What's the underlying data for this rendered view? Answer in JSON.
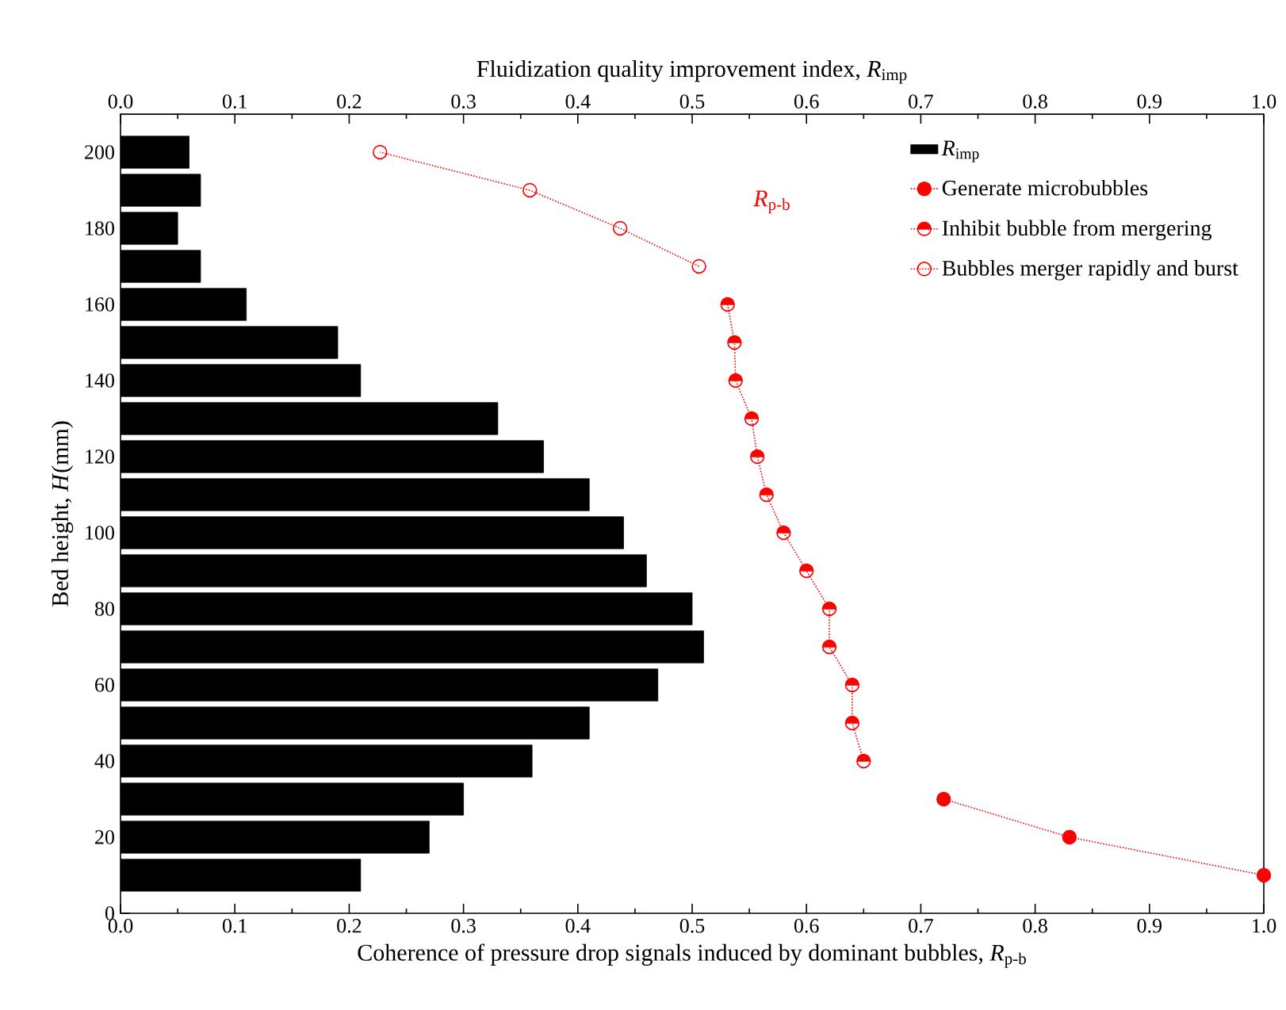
{
  "chart_data": {
    "type": "bar",
    "orientation": "horizontal",
    "xlabel": "Coherence of pressure drop signals induced by dominant bubbles, *R*$_{p-b}$",
    "x2label": "Fluidization quality improvement index, *R*$_{imp}$",
    "ylabel": "Bed height, *H*(mm)",
    "xlim": [
      0,
      1
    ],
    "x2lim": [
      0,
      1
    ],
    "ylim": [
      0,
      210
    ],
    "xticks": [
      {
        "value": 0,
        "label": "0.0"
      },
      0.1,
      0.2,
      0.3,
      0.4,
      0.5,
      0.6,
      0.7,
      0.8,
      0.9,
      {
        "value": 1,
        "label": "1.0"
      }
    ],
    "x2ticks": [
      {
        "value": 0,
        "label": "0.0"
      },
      0.1,
      0.2,
      0.3,
      0.4,
      0.5,
      0.6,
      0.7,
      0.8,
      0.9,
      {
        "value": 1,
        "label": "1.0"
      }
    ],
    "yticks": [
      0,
      20,
      40,
      60,
      80,
      100,
      120,
      140,
      160,
      180,
      200
    ],
    "legend": "top right",
    "annotations": [
      "*R*$_{p-b}$"
    ],
    "series": [
      {
        "name": "*R*$_{imp}$",
        "axis": "x2",
        "color": "#000000",
        "x": [
          10,
          20,
          30,
          40,
          50,
          60,
          70,
          80,
          90,
          100,
          110,
          120,
          130,
          140,
          150,
          160,
          170,
          180,
          190,
          200
        ],
        "values": [
          0.21,
          0.27,
          0.3,
          0.36,
          0.41,
          0.47,
          0.51,
          0.5,
          0.46,
          0.44,
          0.41,
          0.37,
          0.33,
          0.21,
          0.19,
          0.11,
          0.07,
          0.05,
          0.07,
          0.06
        ]
      },
      {
        "name": "Generate microbubbles",
        "type": "line",
        "marker": "circle",
        "line_style": "dotted",
        "color": "#ff0000",
        "x": [
          10,
          20,
          30
        ],
        "values": [
          1.0,
          0.83,
          0.72
        ]
      },
      {
        "name": "Inhibit bubble from mergering",
        "type": "line",
        "marker": "circle-half",
        "line_style": "dotted",
        "color": "#ff0000",
        "x": [
          40,
          50,
          60,
          70,
          80,
          90,
          100,
          110,
          120,
          130,
          140,
          150,
          160
        ],
        "values": [
          0.65,
          0.64,
          0.64,
          0.62,
          0.62,
          0.6,
          0.58,
          0.565,
          0.557,
          0.552,
          0.538,
          0.537,
          0.531
        ]
      },
      {
        "name": "Bubbles merger rapidly and burst",
        "type": "line",
        "marker": "circle-open",
        "line_style": "dotted",
        "color": "#ff0000",
        "x": [
          170,
          180,
          190,
          200
        ],
        "values": [
          0.506,
          0.437,
          0.358,
          0.227
        ]
      }
    ]
  }
}
